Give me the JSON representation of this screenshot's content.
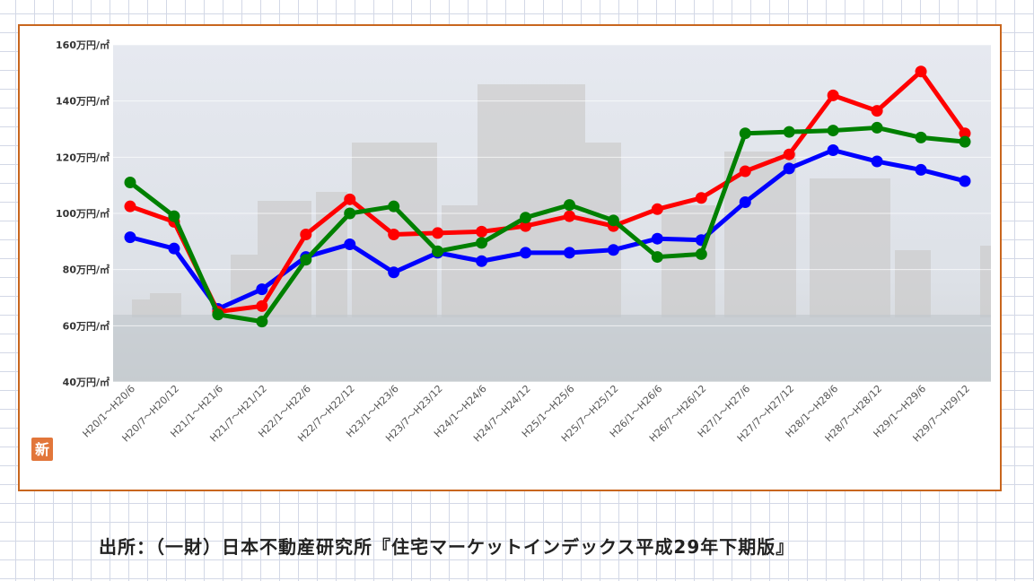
{
  "chart_data": {
    "type": "line",
    "categories": [
      "H20/1～H20/6",
      "H20/7～H20/12",
      "H21/1～H21/6",
      "H21/7～H21/12",
      "H22/1～H22/6",
      "H22/7～H22/12",
      "H23/1～H23/6",
      "H23/7～H23/12",
      "H24/1～H24/6",
      "H24/7～H24/12",
      "H25/1～H25/6",
      "H25/7～H25/12",
      "H26/1～H26/6",
      "H26/7～H26/12",
      "H27/1～H27/6",
      "H27/7～H27/12",
      "H28/1～H28/6",
      "H28/7～H28/12",
      "H29/1～H29/6",
      "H29/7～H29/12"
    ],
    "y_ticks": [
      "40万円/㎡",
      "60万円/㎡",
      "80万円/㎡",
      "100万円/㎡",
      "120万円/㎡",
      "140万円/㎡",
      "160万円/㎡"
    ],
    "ylim": [
      40,
      160
    ],
    "series": [
      {
        "color": "#0000ff",
        "values": [
          91.5,
          87.5,
          66,
          73,
          84.5,
          89,
          79,
          86,
          83,
          86,
          86,
          87,
          91,
          90.5,
          104,
          116,
          122.5,
          118.5,
          115.5,
          111.5
        ]
      },
      {
        "color": "#ff0000",
        "values": [
          102.5,
          97,
          65,
          67,
          92.5,
          105,
          92.5,
          93,
          93.5,
          95.5,
          99,
          95.5,
          101.5,
          105.5,
          115,
          121,
          142,
          136.5,
          150.5,
          128.5
        ]
      },
      {
        "color": "#008000",
        "values": [
          111,
          99,
          64,
          61.5,
          83.5,
          100,
          102.5,
          86.5,
          89.5,
          98.5,
          103,
          97.5,
          84.5,
          85.5,
          128.5,
          129,
          129.5,
          130.5,
          127,
          125.5
        ]
      }
    ],
    "grid": true,
    "legend": "none"
  },
  "badge": {
    "text": "新",
    "color": "#e2763a"
  },
  "plot_background_color": "#e4e8ee",
  "frame_color": "#c8661e",
  "source_caption": "出所：（一財）日本不動産研究所『住宅マーケットインデックス平成29年下期版』"
}
